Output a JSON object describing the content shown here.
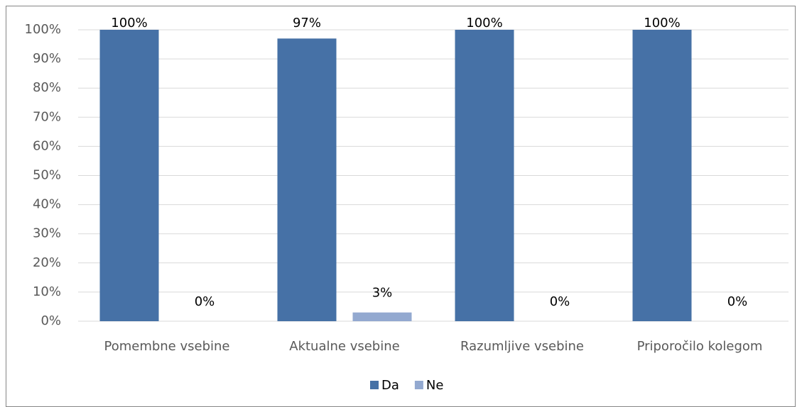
{
  "chart_data": {
    "type": "bar",
    "categories": [
      "Pomembne vsebine",
      "Aktualne vsebine",
      "Razumljive vsebine",
      "Priporočilo kolegom"
    ],
    "series": [
      {
        "name": "Da",
        "color": "#4671a6",
        "values": [
          100,
          97,
          100,
          100
        ],
        "value_labels": [
          "100%",
          "97%",
          "100%",
          "100%"
        ]
      },
      {
        "name": "Ne",
        "color": "#93a9d0",
        "values": [
          0,
          3,
          0,
          0
        ],
        "value_labels": [
          "0%",
          "3%",
          "0%",
          "0%"
        ]
      }
    ],
    "ylim": [
      0,
      100
    ],
    "yticks": [
      {
        "value": 0,
        "label": "0%"
      },
      {
        "value": 10,
        "label": "10%"
      },
      {
        "value": 20,
        "label": "20%"
      },
      {
        "value": 30,
        "label": "30%"
      },
      {
        "value": 40,
        "label": "40%"
      },
      {
        "value": 50,
        "label": "50%"
      },
      {
        "value": 60,
        "label": "60%"
      },
      {
        "value": 70,
        "label": "70%"
      },
      {
        "value": 80,
        "label": "80%"
      },
      {
        "value": 90,
        "label": "90%"
      },
      {
        "value": 100,
        "label": "100%"
      }
    ],
    "grid": true,
    "legend": "bottom"
  }
}
